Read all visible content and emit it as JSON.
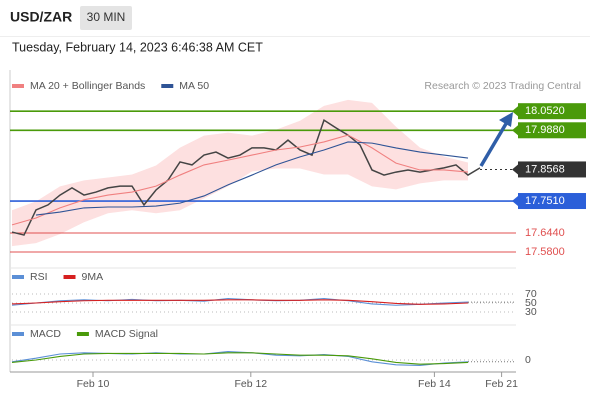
{
  "header": {
    "symbol": "USD/ZAR",
    "interval": "30 MIN",
    "datetime": "Tuesday, February 14, 2023 6:46:38 AM CET"
  },
  "chart_data": [
    {
      "type": "line",
      "source": "Research © 2023 Trading Central",
      "xlim": [
        0,
        42
      ],
      "ylim": [
        17.54,
        18.19
      ],
      "xticks": [
        {
          "value": 6.75,
          "label": "Feb 10"
        },
        {
          "value": 19.9,
          "label": "Feb 12"
        },
        {
          "value": 35.2,
          "label": "Feb 14"
        },
        {
          "value": 40.8,
          "label": "Feb 21"
        }
      ],
      "series": [
        {
          "color": "#444444",
          "x": [
            0,
            1,
            2,
            3,
            4,
            5,
            6,
            7,
            8,
            9,
            10,
            11,
            12,
            13,
            14,
            15,
            16,
            17,
            18,
            19,
            20,
            21,
            22,
            23,
            24,
            25,
            26,
            27,
            28,
            29,
            30,
            31,
            32,
            33,
            34,
            35,
            36,
            37,
            38,
            39
          ],
          "values": [
            17.647,
            17.637,
            17.721,
            17.738,
            17.771,
            17.795,
            17.771,
            17.781,
            17.795,
            17.801,
            17.801,
            17.738,
            17.788,
            17.821,
            17.882,
            17.872,
            17.905,
            17.915,
            17.895,
            17.905,
            17.929,
            17.929,
            17.922,
            17.955,
            17.922,
            17.905,
            18.022,
            17.996,
            17.972,
            17.939,
            17.855,
            17.838,
            17.848,
            17.855,
            17.848,
            17.855,
            17.862,
            17.872,
            17.838,
            17.862
          ]
        },
        {
          "name": "MA 20 + Bollinger Bands",
          "color": "#f08080",
          "band_color": "#fde0e0",
          "x": [
            0,
            2,
            4,
            6,
            8,
            10,
            12,
            14,
            16,
            18,
            20,
            22,
            24,
            26,
            28,
            30,
            32,
            34,
            36,
            38
          ],
          "values": [
            17.671,
            17.694,
            17.728,
            17.755,
            17.771,
            17.781,
            17.801,
            17.838,
            17.872,
            17.888,
            17.905,
            17.922,
            17.932,
            17.949,
            17.972,
            17.929,
            17.878,
            17.855,
            17.855,
            17.848
          ],
          "upper": [
            17.72,
            17.75,
            17.8,
            17.82,
            17.83,
            17.84,
            17.87,
            17.93,
            17.97,
            17.98,
            17.97,
            17.99,
            18.02,
            18.07,
            18.09,
            18.08,
            18.0,
            17.93,
            17.9,
            17.88
          ],
          "lower": [
            17.6,
            17.61,
            17.64,
            17.68,
            17.71,
            17.72,
            17.71,
            17.72,
            17.76,
            17.8,
            17.85,
            17.86,
            17.86,
            17.84,
            17.84,
            17.8,
            17.79,
            17.81,
            17.82,
            17.82
          ]
        },
        {
          "name": "MA 50",
          "color": "#2f5496",
          "x": [
            0,
            2,
            4,
            6,
            8,
            10,
            12,
            14,
            16,
            18,
            20,
            22,
            24,
            26,
            28,
            30,
            32,
            34,
            36,
            38
          ],
          "values": [
            null,
            17.704,
            17.714,
            17.728,
            17.731,
            17.731,
            17.734,
            17.744,
            17.768,
            17.805,
            17.838,
            17.872,
            17.899,
            17.922,
            17.949,
            17.945,
            17.929,
            17.915,
            17.905,
            17.895
          ]
        }
      ],
      "levels": [
        {
          "value": 18.052,
          "label": "18.0520",
          "color": "#4a9a0a",
          "boxed": true
        },
        {
          "value": 17.988,
          "label": "17.9880",
          "color": "#4a9a0a",
          "boxed": true
        },
        {
          "value": 17.8568,
          "color": "#333333",
          "boxed": true,
          "dash": true
        },
        {
          "value": 17.751,
          "label": "17.7510",
          "color": "#2b5fd9",
          "boxed": true
        },
        {
          "value": 17.644,
          "label": "17.6440",
          "color": "#e05050",
          "boxed": false
        },
        {
          "value": 17.58,
          "label": "17.5800",
          "color": "#e05050",
          "boxed": false
        }
      ]
    },
    {
      "type": "line",
      "xlim": [
        0,
        42
      ],
      "ylim": [
        10,
        90
      ],
      "yticks": [
        30,
        50,
        70
      ],
      "series": [
        {
          "name": "RSI",
          "color": "#5b8fd6",
          "x": [
            0,
            2,
            4,
            6,
            8,
            10,
            12,
            14,
            16,
            18,
            20,
            22,
            24,
            26,
            28,
            30,
            32,
            34,
            36,
            38
          ],
          "values": [
            45,
            50,
            55,
            57,
            55,
            58,
            55,
            56,
            54,
            60,
            57,
            55,
            56,
            60,
            55,
            48,
            45,
            47,
            50,
            52
          ]
        },
        {
          "name": "9MA",
          "color": "#d62020",
          "x": [
            0,
            2,
            4,
            6,
            8,
            10,
            12,
            14,
            16,
            18,
            20,
            22,
            24,
            26,
            28,
            30,
            32,
            34,
            36,
            38
          ],
          "values": [
            48,
            50,
            53,
            55,
            56,
            56,
            56,
            56,
            56,
            57,
            57,
            56,
            56,
            57,
            56,
            53,
            49,
            47,
            48,
            50
          ]
        }
      ]
    },
    {
      "type": "line",
      "xlim": [
        0,
        42
      ],
      "ylim": [
        -0.03,
        0.03
      ],
      "yticks": [
        0
      ],
      "series": [
        {
          "name": "MACD",
          "color": "#5b8fd6",
          "x": [
            0,
            2,
            4,
            6,
            8,
            10,
            12,
            14,
            16,
            18,
            20,
            22,
            24,
            26,
            28,
            30,
            32,
            34,
            36,
            38
          ],
          "values": [
            -0.003,
            0.003,
            0.01,
            0.012,
            0.011,
            0.01,
            0.012,
            0.01,
            0.01,
            0.014,
            0.012,
            0.008,
            0.007,
            0.009,
            0.006,
            -0.003,
            -0.008,
            -0.009,
            -0.005,
            -0.003
          ]
        },
        {
          "name": "MACD Signal",
          "color": "#4a9a0a",
          "x": [
            0,
            2,
            4,
            6,
            8,
            10,
            12,
            14,
            16,
            18,
            20,
            22,
            24,
            26,
            28,
            30,
            32,
            34,
            36,
            38
          ],
          "values": [
            -0.004,
            0.0,
            0.006,
            0.01,
            0.011,
            0.011,
            0.011,
            0.011,
            0.01,
            0.012,
            0.012,
            0.01,
            0.008,
            0.008,
            0.007,
            0.002,
            -0.004,
            -0.007,
            -0.006,
            -0.004
          ]
        }
      ]
    }
  ]
}
